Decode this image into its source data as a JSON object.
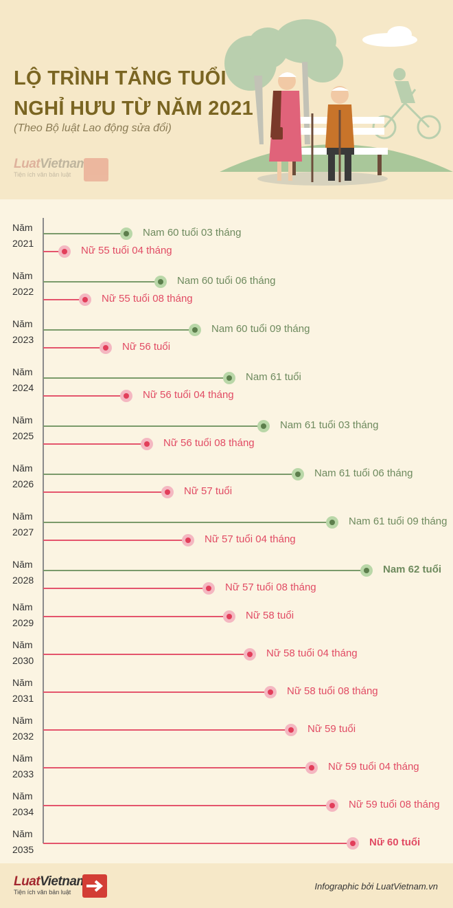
{
  "header": {
    "title_line1": "LỘ TRÌNH TĂNG TUỔI",
    "title_line2": "NGHỈ HƯU TỪ NĂM 2021",
    "subtitle": "(Theo Bộ luật Lao động sửa đổi)"
  },
  "logo": {
    "word_part1": "Luat",
    "word_part2": "Vietnam",
    "tagline": "Tiện ích văn bản luật",
    "icon": "arrow-right-icon"
  },
  "colors": {
    "male": "#7a9a6a",
    "female": "#e4546c",
    "title": "#7a6522",
    "background": "#fbf4e2"
  },
  "timeline": [
    {
      "year_word": "Năm",
      "year": "2021",
      "male": "Nam 60 tuổi 03 tháng",
      "female": "Nữ 55 tuổi 04 tháng"
    },
    {
      "year_word": "Năm",
      "year": "2022",
      "male": "Nam 60 tuổi 06 tháng",
      "female": "Nữ 55 tuổi 08 tháng"
    },
    {
      "year_word": "Năm",
      "year": "2023",
      "male": "Nam 60 tuổi 09 tháng",
      "female": "Nữ 56 tuổi"
    },
    {
      "year_word": "Năm",
      "year": "2024",
      "male": "Nam 61 tuổi",
      "female": "Nữ 56 tuổi 04 tháng"
    },
    {
      "year_word": "Năm",
      "year": "2025",
      "male": "Nam 61 tuổi 03 tháng",
      "female": "Nữ 56 tuổi 08 tháng"
    },
    {
      "year_word": "Năm",
      "year": "2026",
      "male": "Nam 61 tuổi 06 tháng",
      "female": "Nữ 57 tuổi"
    },
    {
      "year_word": "Năm",
      "year": "2027",
      "male": "Nam 61 tuổi 09 tháng",
      "female": "Nữ 57 tuổi 04 tháng"
    },
    {
      "year_word": "Năm",
      "year": "2028",
      "male": "Nam 62 tuổi",
      "female": "Nữ 57 tuổi 08 tháng"
    },
    {
      "year_word": "Năm",
      "year": "2029",
      "male": null,
      "female": "Nữ 58 tuổi"
    },
    {
      "year_word": "Năm",
      "year": "2030",
      "male": null,
      "female": "Nữ 58 tuổi 04 tháng"
    },
    {
      "year_word": "Năm",
      "year": "2031",
      "male": null,
      "female": "Nữ 58 tuổi 08 tháng"
    },
    {
      "year_word": "Năm",
      "year": "2032",
      "male": null,
      "female": "Nữ 59 tuổi"
    },
    {
      "year_word": "Năm",
      "year": "2033",
      "male": null,
      "female": "Nữ 59 tuổi 04 tháng"
    },
    {
      "year_word": "Năm",
      "year": "2034",
      "male": null,
      "female": "Nữ 59 tuổi 08 tháng"
    },
    {
      "year_word": "Năm",
      "year": "2035",
      "male": null,
      "female": "Nữ 60 tuổi"
    }
  ],
  "footer": {
    "credit": "Infographic bởi LuatVietnam.vn"
  }
}
